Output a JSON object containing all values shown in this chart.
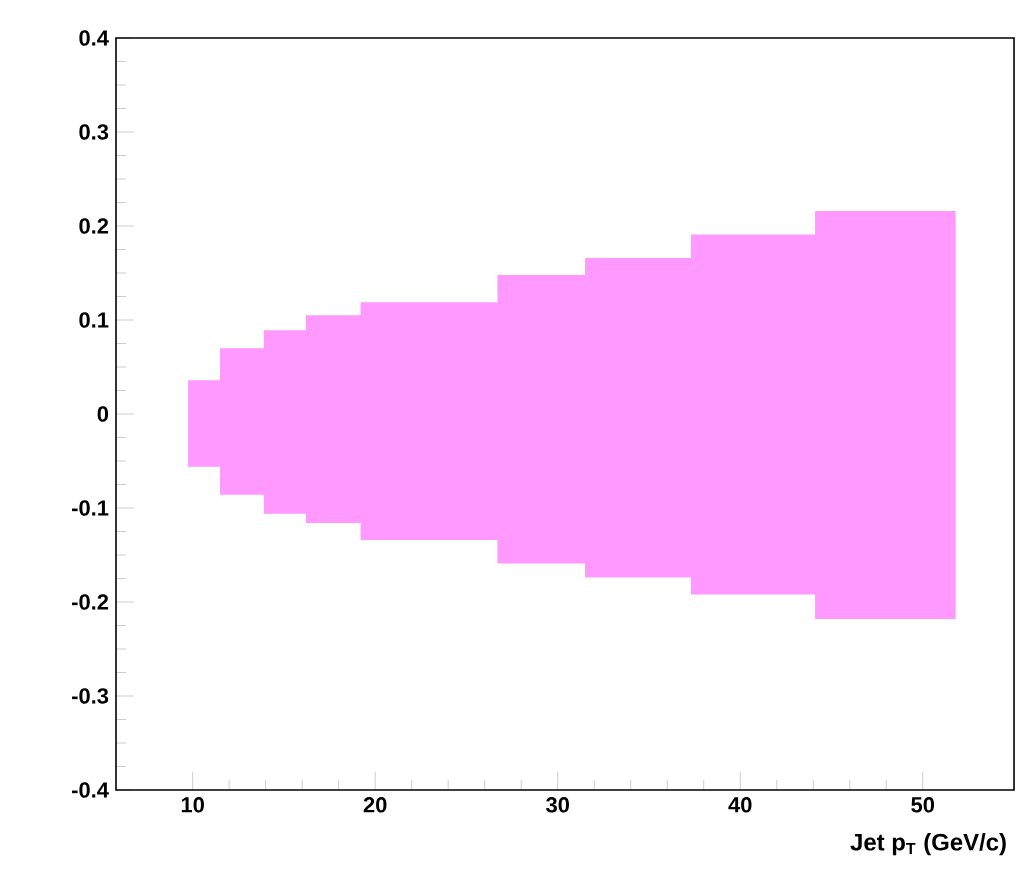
{
  "chart_data": {
    "type": "step",
    "xlabel": "Jet p$_{T}$ (GeV/c)",
    "x": [
      9.75,
      11.5,
      13.9,
      16.2,
      19.2,
      26.7,
      31.5,
      37.3,
      44.1,
      51.8
    ],
    "series": [
      {
        "color": "#ff99ff",
        "values": [
          null,
          null,
          null,
          null,
          null,
          null,
          null,
          null,
          null,
          null
        ],
        "lower": [
          -0.056,
          -0.086,
          -0.106,
          -0.116,
          -0.134,
          -0.159,
          -0.174,
          -0.192,
          -0.218,
          -0.218
        ],
        "upper": [
          0.036,
          0.07,
          0.089,
          0.105,
          0.119,
          0.148,
          0.166,
          0.191,
          0.216,
          0.216
        ]
      }
    ],
    "xlim": [
      5.8,
      55
    ],
    "xticks": [
      10,
      20,
      30,
      40,
      50
    ],
    "ylim": [
      -0.4,
      0.4
    ],
    "yticks": [
      -0.4,
      -0.3,
      -0.2,
      -0.1,
      0,
      0.1,
      0.2,
      0.3,
      0.4
    ]
  }
}
